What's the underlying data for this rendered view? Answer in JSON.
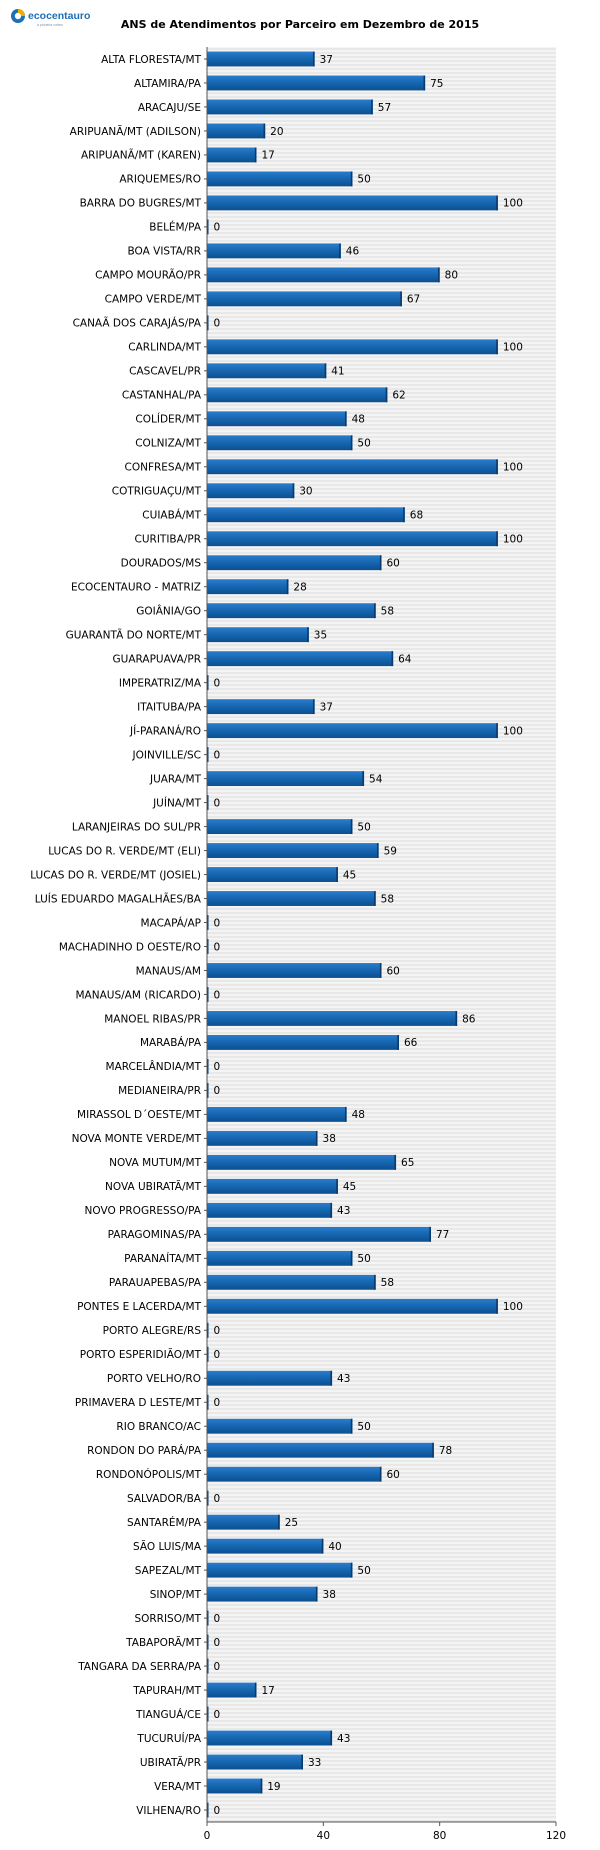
{
  "brand": {
    "name": "ecocentauro",
    "tagline": "a pioneira cortes",
    "colors": {
      "primary": "#1f6fb8",
      "accent": "#f2a900"
    }
  },
  "chart_data": {
    "type": "bar",
    "orientation": "horizontal",
    "title": "ANS de Atendimentos por Parceiro em Dezembro de 2015",
    "xlim": [
      0,
      120
    ],
    "xticks": [
      0,
      40,
      80,
      120
    ],
    "grid": true,
    "bar_color": "#1565b0",
    "categories": [
      "ALTA FLORESTA/MT",
      "ALTAMIRA/PA",
      "ARACAJU/SE",
      "ARIPUANÃ/MT (ADILSON)",
      "ARIPUANÃ/MT (KAREN)",
      "ARIQUEMES/RO",
      "BARRA DO BUGRES/MT",
      "BELÉM/PA",
      "BOA VISTA/RR",
      "CAMPO MOURÃO/PR",
      "CAMPO VERDE/MT",
      "CANAÃ DOS CARAJÁS/PA",
      "CARLINDA/MT",
      "CASCAVEL/PR",
      "CASTANHAL/PA",
      "COLÍDER/MT",
      "COLNIZA/MT",
      "CONFRESA/MT",
      "COTRIGUAÇU/MT",
      "CUIABÁ/MT",
      "CURITIBA/PR",
      "DOURADOS/MS",
      "ECOCENTAURO - MATRIZ",
      "GOIÂNIA/GO",
      "GUARANTÃ DO NORTE/MT",
      "GUARAPUAVA/PR",
      "IMPERATRIZ/MA",
      "ITAITUBA/PA",
      "JÍ-PARANÁ/RO",
      "JOINVILLE/SC",
      "JUARA/MT",
      "JUÍNA/MT",
      "LARANJEIRAS DO SUL/PR",
      "LUCAS DO R. VERDE/MT (ELI)",
      "LUCAS DO R. VERDE/MT (JOSIEL)",
      "LUÍS EDUARDO MAGALHÃES/BA",
      "MACAPÁ/AP",
      "MACHADINHO D OESTE/RO",
      "MANAUS/AM",
      "MANAUS/AM (RICARDO)",
      "MANOEL RIBAS/PR",
      "MARABÁ/PA",
      "MARCELÂNDIA/MT",
      "MEDIANEIRA/PR",
      "MIRASSOL D´OESTE/MT",
      "NOVA MONTE VERDE/MT",
      "NOVA MUTUM/MT",
      "NOVA UBIRATÃ/MT",
      "NOVO PROGRESSO/PA",
      "PARAGOMINAS/PA",
      "PARANAÍTA/MT",
      "PARAUAPEBAS/PA",
      "PONTES E LACERDA/MT",
      "PORTO ALEGRE/RS",
      "PORTO ESPERIDIÃO/MT",
      "PORTO VELHO/RO",
      "PRIMAVERA D LESTE/MT",
      "RIO BRANCO/AC",
      "RONDON DO PARÁ/PA",
      "RONDONÓPOLIS/MT",
      "SALVADOR/BA",
      "SANTARÉM/PA",
      "SÃO LUIS/MA",
      "SAPEZAL/MT",
      "SINOP/MT",
      "SORRISO/MT",
      "TABAPORÃ/MT",
      "TANGARA DA SERRA/PA",
      "TAPURAH/MT",
      "TIANGUÁ/CE",
      "TUCURUÍ/PA",
      "UBIRATÃ/PR",
      "VERA/MT",
      "VILHENA/RO"
    ],
    "values": [
      37,
      75,
      57,
      20,
      17,
      50,
      100,
      0,
      46,
      80,
      67,
      0,
      100,
      41,
      62,
      48,
      50,
      100,
      30,
      68,
      100,
      60,
      28,
      58,
      35,
      64,
      0,
      37,
      100,
      0,
      54,
      0,
      50,
      59,
      45,
      58,
      0,
      0,
      60,
      0,
      86,
      66,
      0,
      0,
      48,
      38,
      65,
      45,
      43,
      77,
      50,
      58,
      100,
      0,
      0,
      43,
      0,
      50,
      78,
      60,
      0,
      25,
      40,
      50,
      38,
      0,
      0,
      0,
      17,
      0,
      43,
      33,
      19,
      0
    ]
  }
}
